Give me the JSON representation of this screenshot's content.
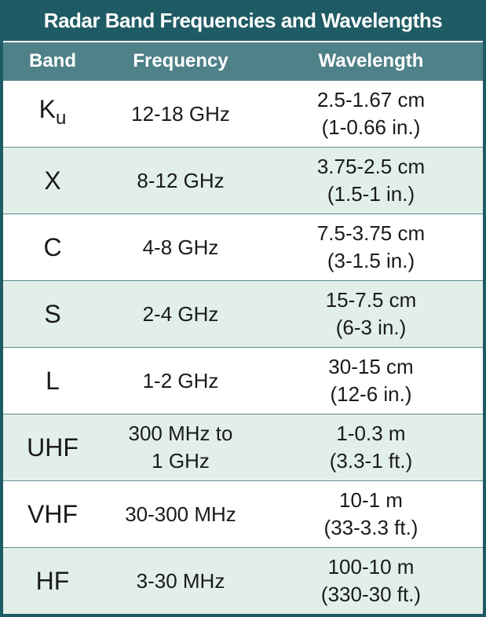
{
  "header": {
    "title": "Radar Band Frequencies and Wavelengths"
  },
  "table": {
    "columns": [
      "Band",
      "Frequency",
      "Wavelength"
    ],
    "rows": [
      {
        "band": "K",
        "band_sub": "u",
        "frequency": [
          "12-18 GHz"
        ],
        "wavelength": [
          "2.5-1.67 cm",
          "(1-0.66 in.)"
        ]
      },
      {
        "band": "X",
        "frequency": [
          "8-12 GHz"
        ],
        "wavelength": [
          "3.75-2.5 cm",
          "(1.5-1 in.)"
        ]
      },
      {
        "band": "C",
        "frequency": [
          "4-8 GHz"
        ],
        "wavelength": [
          "7.5-3.75 cm",
          "(3-1.5 in.)"
        ]
      },
      {
        "band": "S",
        "frequency": [
          "2-4 GHz"
        ],
        "wavelength": [
          "15-7.5 cm",
          "(6-3 in.)"
        ]
      },
      {
        "band": "L",
        "frequency": [
          "1-2 GHz"
        ],
        "wavelength": [
          "30-15 cm",
          "(12-6 in.)"
        ]
      },
      {
        "band": "UHF",
        "frequency": [
          "300 MHz to",
          "1 GHz"
        ],
        "wavelength": [
          "1-0.3 m",
          "(3.3-1 ft.)"
        ]
      },
      {
        "band": "VHF",
        "frequency": [
          "30-300 MHz"
        ],
        "wavelength": [
          "10-1 m",
          "(33-3.3 ft.)"
        ]
      },
      {
        "band": "HF",
        "frequency": [
          "3-30 MHz"
        ],
        "wavelength": [
          "100-10 m",
          "(330-30 ft.)"
        ]
      }
    ]
  }
}
